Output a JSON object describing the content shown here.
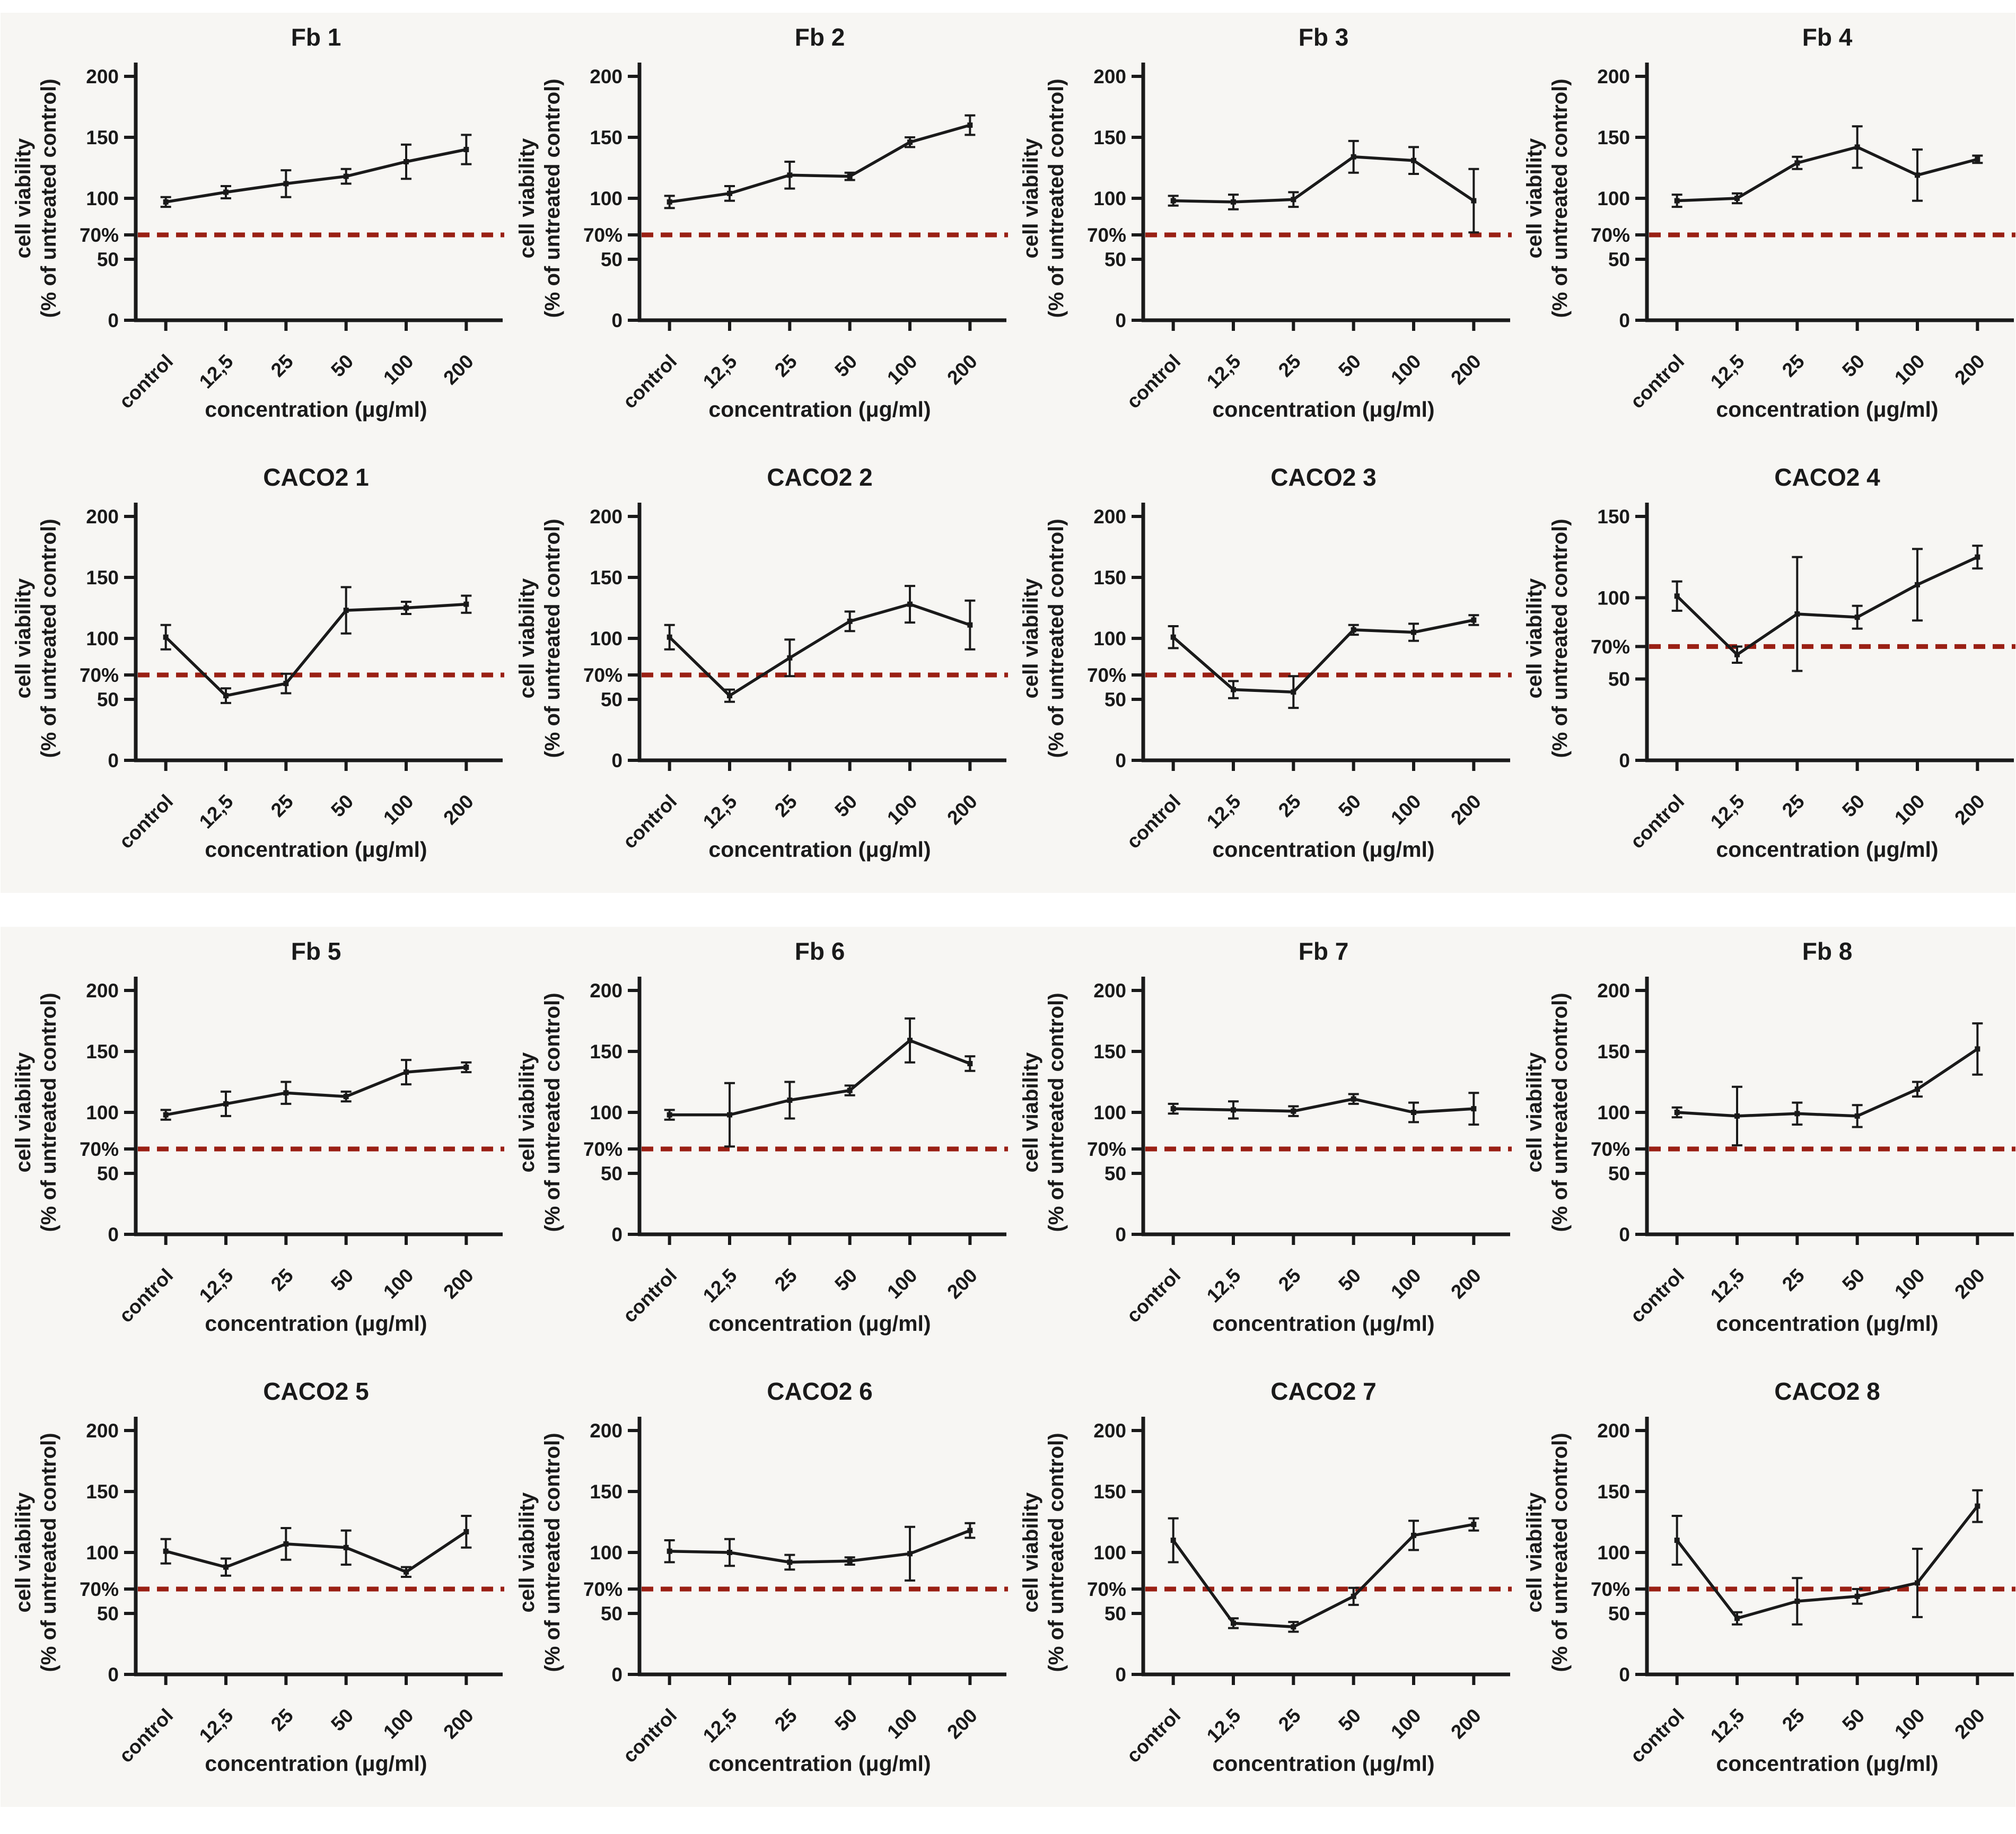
{
  "figure": {
    "threshold": {
      "label": "70%",
      "value": 70,
      "color": "#9a2014"
    },
    "categories": [
      "control",
      "12,5",
      "25",
      "50",
      "100",
      "200"
    ],
    "xlabel": "concentration (μg/ml)",
    "ylabel_line1": "cell viability",
    "ylabel_line2": "(% of untreated control)",
    "line_color": "#1a1a1a"
  },
  "chart_data": [
    {
      "type": "line",
      "title": "Fb 1",
      "ymax": 200,
      "yticks": [
        0,
        50,
        100,
        150,
        200
      ],
      "ytick_labels": [
        "0",
        "50",
        "100",
        "150",
        "200"
      ],
      "values": [
        97,
        105,
        112,
        118,
        130,
        140
      ],
      "errors": [
        4,
        5,
        11,
        6,
        14,
        12
      ]
    },
    {
      "type": "line",
      "title": "Fb 2",
      "ymax": 200,
      "yticks": [
        0,
        50,
        100,
        150,
        200
      ],
      "ytick_labels": [
        "0",
        "50",
        "100",
        "150",
        "200"
      ],
      "values": [
        97,
        104,
        119,
        118,
        146,
        160
      ],
      "errors": [
        5,
        6,
        11,
        3,
        4,
        8
      ]
    },
    {
      "type": "line",
      "title": "Fb 3",
      "ymax": 200,
      "yticks": [
        0,
        50,
        100,
        150,
        200
      ],
      "ytick_labels": [
        "0",
        "50",
        "100",
        "150",
        "200"
      ],
      "values": [
        98,
        97,
        99,
        134,
        131,
        98
      ],
      "errors": [
        4,
        6,
        6,
        13,
        11,
        26
      ]
    },
    {
      "type": "line",
      "title": "Fb 4",
      "ymax": 200,
      "yticks": [
        0,
        50,
        100,
        150,
        200
      ],
      "ytick_labels": [
        "0",
        "50",
        "100",
        "150",
        "200"
      ],
      "values": [
        98,
        100,
        129,
        142,
        119,
        132
      ],
      "errors": [
        5,
        4,
        5,
        17,
        21,
        3
      ]
    },
    {
      "type": "line",
      "title": "CACO2 1",
      "ymax": 200,
      "yticks": [
        0,
        50,
        100,
        150,
        200
      ],
      "ytick_labels": [
        "0",
        "50",
        "100",
        "150",
        "200"
      ],
      "values": [
        101,
        53,
        63,
        123,
        125,
        128
      ],
      "errors": [
        10,
        6,
        8,
        19,
        5,
        7
      ]
    },
    {
      "type": "line",
      "title": "CACO2 2",
      "ymax": 200,
      "yticks": [
        0,
        50,
        100,
        150,
        200
      ],
      "ytick_labels": [
        "0",
        "50",
        "100",
        "150",
        "200"
      ],
      "values": [
        101,
        53,
        84,
        114,
        128,
        111
      ],
      "errors": [
        10,
        5,
        15,
        8,
        15,
        20
      ]
    },
    {
      "type": "line",
      "title": "CACO2 3",
      "ymax": 200,
      "yticks": [
        0,
        50,
        100,
        150,
        200
      ],
      "ytick_labels": [
        "0",
        "50",
        "100",
        "150",
        "200"
      ],
      "values": [
        101,
        58,
        56,
        107,
        105,
        115
      ],
      "errors": [
        9,
        7,
        13,
        4,
        7,
        4
      ]
    },
    {
      "type": "line",
      "title": "CACO2 4",
      "ymax": 150,
      "yticks": [
        0,
        50,
        100,
        150
      ],
      "ytick_labels": [
        "0",
        "50",
        "100",
        "150"
      ],
      "values": [
        101,
        65,
        90,
        88,
        108,
        125
      ],
      "errors": [
        9,
        5,
        35,
        7,
        22,
        7
      ]
    },
    {
      "type": "line",
      "title": "Fb 5",
      "ymax": 200,
      "yticks": [
        0,
        50,
        100,
        150,
        200
      ],
      "ytick_labels": [
        "0",
        "50",
        "100",
        "150",
        "200"
      ],
      "values": [
        98,
        107,
        116,
        113,
        133,
        137
      ],
      "errors": [
        4,
        10,
        9,
        4,
        10,
        4
      ]
    },
    {
      "type": "line",
      "title": "Fb 6",
      "ymax": 200,
      "yticks": [
        0,
        50,
        100,
        150,
        200
      ],
      "ytick_labels": [
        "0",
        "50",
        "100",
        "150",
        "200"
      ],
      "values": [
        98,
        98,
        110,
        118,
        159,
        140
      ],
      "errors": [
        4,
        26,
        15,
        4,
        18,
        6
      ]
    },
    {
      "type": "line",
      "title": "Fb 7",
      "ymax": 200,
      "yticks": [
        0,
        50,
        100,
        150,
        200
      ],
      "ytick_labels": [
        "0",
        "50",
        "100",
        "150",
        "200"
      ],
      "values": [
        103,
        102,
        101,
        111,
        100,
        103
      ],
      "errors": [
        4,
        7,
        4,
        4,
        8,
        13
      ]
    },
    {
      "type": "line",
      "title": "Fb 8",
      "ymax": 200,
      "yticks": [
        0,
        50,
        100,
        150,
        200
      ],
      "ytick_labels": [
        "0",
        "50",
        "100",
        "150",
        "200"
      ],
      "values": [
        100,
        97,
        99,
        97,
        119,
        152
      ],
      "errors": [
        4,
        24,
        9,
        9,
        6,
        21
      ]
    },
    {
      "type": "line",
      "title": "CACO2 5",
      "ymax": 200,
      "yticks": [
        0,
        50,
        100,
        150,
        200
      ],
      "ytick_labels": [
        "0",
        "50",
        "100",
        "150",
        "200"
      ],
      "values": [
        101,
        88,
        107,
        104,
        84,
        117
      ],
      "errors": [
        10,
        7,
        13,
        14,
        4,
        13
      ]
    },
    {
      "type": "line",
      "title": "CACO2 6",
      "ymax": 200,
      "yticks": [
        0,
        50,
        100,
        150,
        200
      ],
      "ytick_labels": [
        "0",
        "50",
        "100",
        "150",
        "200"
      ],
      "values": [
        101,
        100,
        92,
        93,
        99,
        118
      ],
      "errors": [
        9,
        11,
        6,
        3,
        22,
        6
      ]
    },
    {
      "type": "line",
      "title": "CACO2 7",
      "ymax": 200,
      "yticks": [
        0,
        50,
        100,
        150,
        200
      ],
      "ytick_labels": [
        "0",
        "50",
        "100",
        "150",
        "200"
      ],
      "values": [
        110,
        42,
        39,
        64,
        114,
        123
      ],
      "errors": [
        18,
        4,
        4,
        7,
        12,
        5
      ]
    },
    {
      "type": "line",
      "title": "CACO2 8",
      "ymax": 200,
      "yticks": [
        0,
        50,
        100,
        150,
        200
      ],
      "ytick_labels": [
        "0",
        "50",
        "100",
        "150",
        "200"
      ],
      "values": [
        110,
        46,
        60,
        64,
        75,
        138
      ],
      "errors": [
        20,
        5,
        19,
        6,
        28,
        13
      ]
    }
  ]
}
